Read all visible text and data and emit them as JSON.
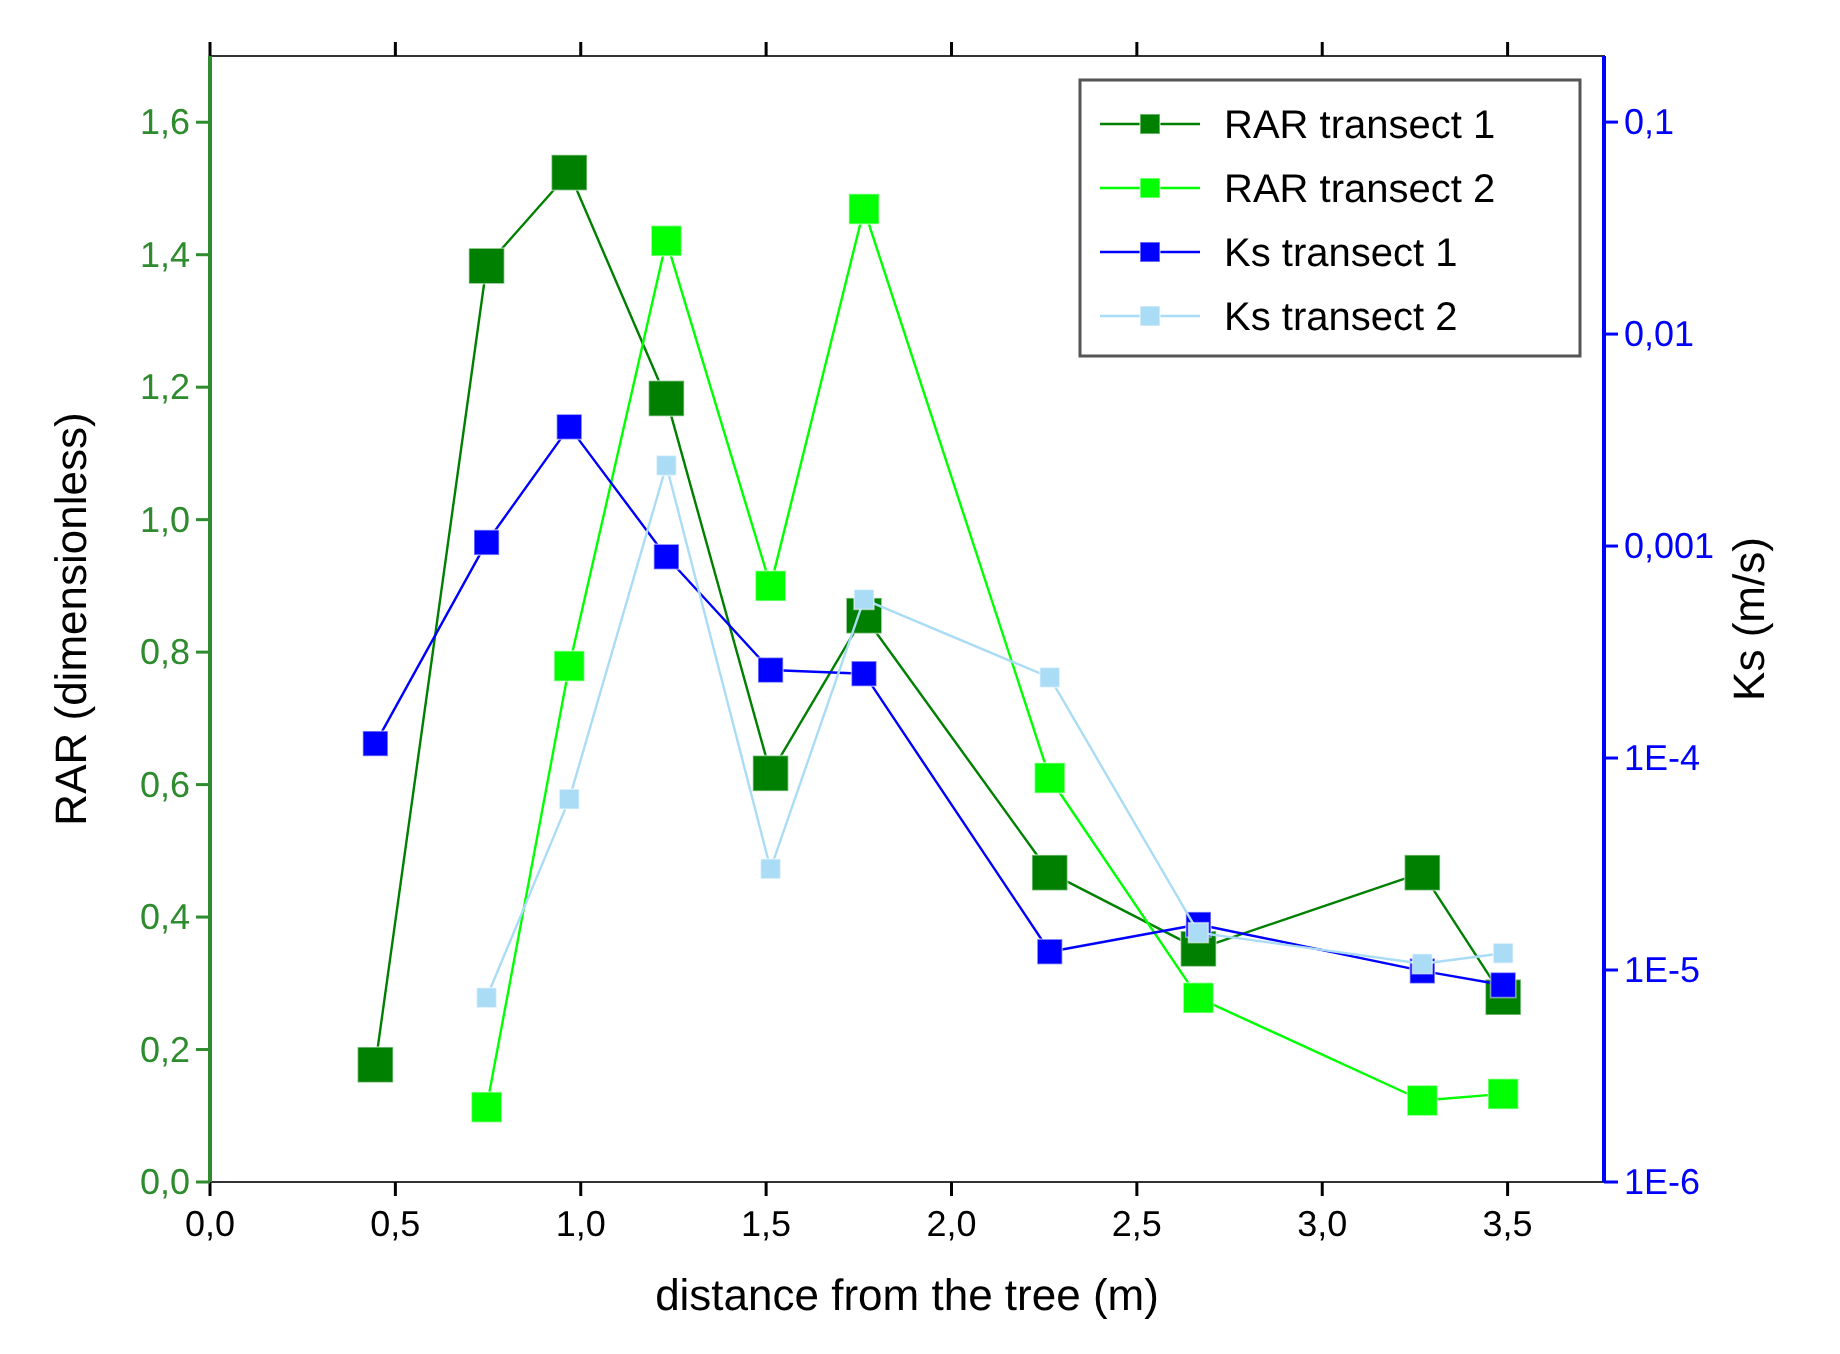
{
  "chart_data": {
    "type": "line",
    "xlabel": "distance from the tree (m)",
    "ylabel": "RAR (dimensionless)",
    "y2label": "Ks (m/s)",
    "xlim": [
      0,
      3.76
    ],
    "xticks": [
      {
        "value": 0,
        "label": "0,0"
      },
      {
        "value": 0.5,
        "label": "0,5"
      },
      {
        "value": 1,
        "label": "1,0"
      },
      {
        "value": 1.5,
        "label": "1,5"
      },
      {
        "value": 2,
        "label": "2,0"
      },
      {
        "value": 2.5,
        "label": "2,5"
      },
      {
        "value": 3,
        "label": "3,0"
      },
      {
        "value": 3.5,
        "label": "3,5"
      }
    ],
    "ylim": [
      0,
      1.7
    ],
    "yticks": [
      {
        "value": 0,
        "label": "0,0"
      },
      {
        "value": 0.2,
        "label": "0,2"
      },
      {
        "value": 0.4,
        "label": "0,4"
      },
      {
        "value": 0.6,
        "label": "0,6"
      },
      {
        "value": 0.8,
        "label": "0,8"
      },
      {
        "value": 1,
        "label": "1,0"
      },
      {
        "value": 1.2,
        "label": "1,2"
      },
      {
        "value": 1.4,
        "label": "1,4"
      },
      {
        "value": 1.6,
        "label": "1,6"
      }
    ],
    "y2lim": [
      1e-06,
      0.205
    ],
    "y2ticks": [
      {
        "value": 1e-06,
        "label": "1E-6"
      },
      {
        "value": 1e-05,
        "label": "1E-5"
      },
      {
        "value": 0.0001,
        "label": "1E-4"
      },
      {
        "value": 0.001,
        "label": "0,001"
      },
      {
        "value": 0.01,
        "label": "0,01"
      },
      {
        "value": 0.1,
        "label": "0,1"
      }
    ],
    "log": "y2",
    "grid": false,
    "legend": "top right",
    "marker": "square",
    "line_style": "solid",
    "series": [
      {
        "name": "RAR transect 1",
        "color": "#008000",
        "x": [
          0.446,
          0.746,
          0.969,
          1.231,
          1.512,
          1.764,
          2.265,
          2.666,
          3.27,
          3.488
        ],
        "values": [
          0.177,
          1.383,
          1.524,
          1.183,
          0.617,
          0.855,
          0.467,
          0.352,
          0.467,
          0.279
        ]
      },
      {
        "name": "RAR transect 2",
        "color": "#00ff00",
        "x": [
          0.746,
          0.969,
          1.231,
          1.512,
          1.764,
          2.265,
          2.666,
          3.27,
          3.488
        ],
        "values": [
          0.113,
          0.779,
          1.421,
          0.9,
          1.469,
          0.61,
          0.278,
          0.123,
          0.133
        ]
      },
      {
        "name": "Ks transect 1",
        "color": "#0000ff",
        "axis": "y2",
        "x": [
          0.446,
          0.746,
          0.969,
          1.231,
          1.512,
          1.764,
          2.265,
          2.666,
          3.27,
          3.488
        ],
        "values": [
          0.000117,
          0.00104,
          0.00365,
          0.00089,
          0.00026,
          0.00025,
          1.22e-05,
          1.64e-05,
          9.9e-06,
          8.5e-06
        ]
      },
      {
        "name": "Ks transect 2",
        "color": "#abdcf6",
        "axis": "y2",
        "x": [
          0.746,
          0.969,
          1.231,
          1.512,
          1.764,
          2.265,
          2.666,
          3.27,
          3.488
        ],
        "values": [
          7.4e-06,
          6.4e-05,
          0.0024,
          3e-05,
          0.00056,
          0.00024,
          1.5e-05,
          1.07e-05,
          1.2e-05
        ]
      }
    ]
  }
}
